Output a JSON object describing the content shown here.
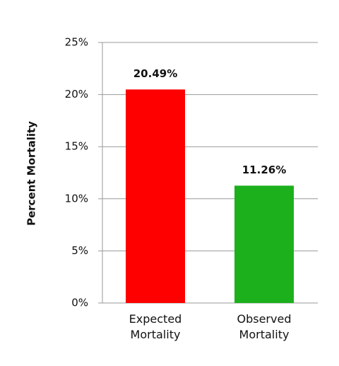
{
  "chart_data": {
    "type": "bar",
    "y_label": "Percent Mortality",
    "categories": [
      "Expected Mortality",
      "Observed Mortality"
    ],
    "values": [
      20.49,
      11.26
    ],
    "value_labels": [
      "20.49%",
      "11.26%"
    ],
    "colors": [
      "#fe0000",
      "#1cb01c"
    ],
    "ylim": [
      0,
      25
    ],
    "yticks": [
      {
        "value": 0,
        "label": "0%"
      },
      {
        "value": 5,
        "label": "5%"
      },
      {
        "value": 10,
        "label": "10%"
      },
      {
        "value": 15,
        "label": "15%"
      },
      {
        "value": 20,
        "label": "20%"
      },
      {
        "value": 25,
        "label": "25%"
      }
    ],
    "grid": true
  }
}
